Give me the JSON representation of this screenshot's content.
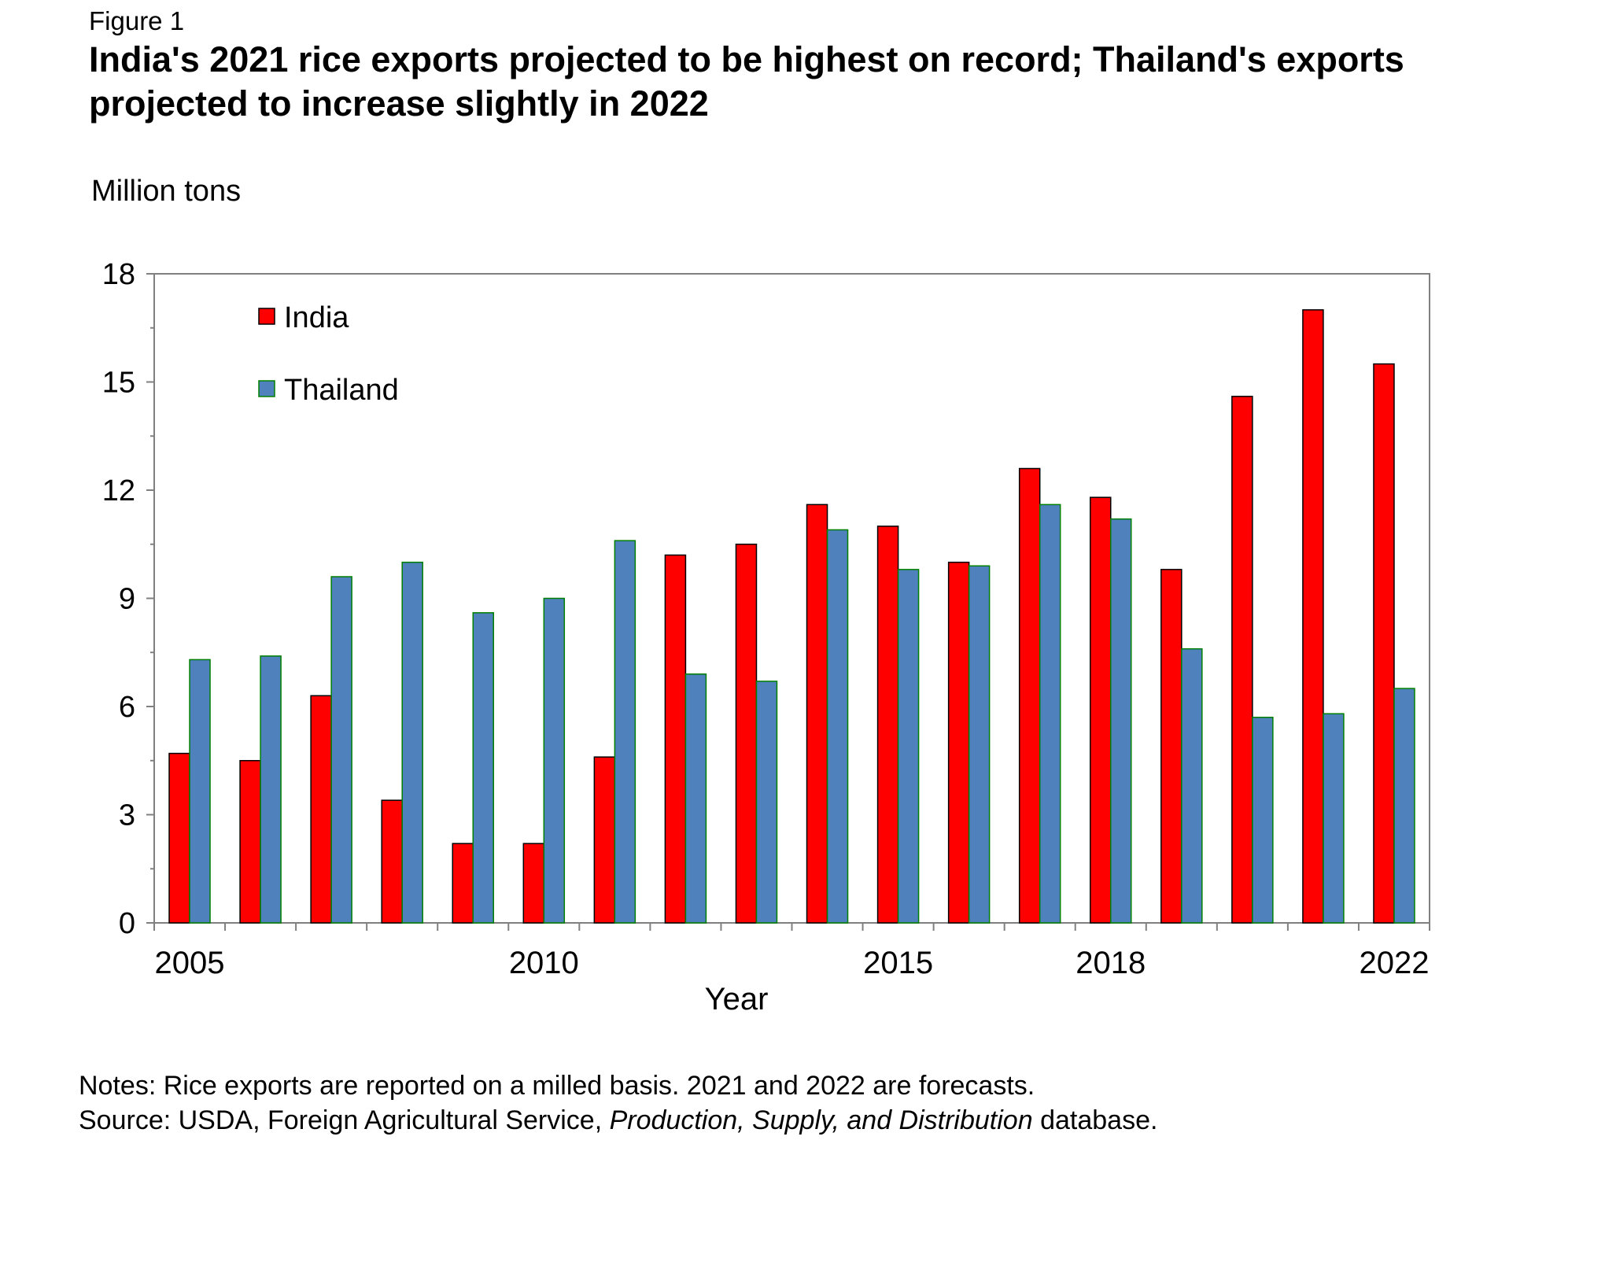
{
  "figure_label": "Figure 1",
  "title": "India's 2021 rice exports projected to be highest on record; Thailand's exports projected to increase slightly in 2022",
  "notes": {
    "line1": "Notes: Rice exports are reported on a milled basis. 2021 and 2022 are forecasts.",
    "source_prefix": "Source: USDA, Foreign Agricultural Service, ",
    "source_italic": "Production, Supply, and Distribution",
    "source_suffix": " database."
  },
  "colors": {
    "india": "#ff0000",
    "thailand": "#4f81bd",
    "thailand_border": "#008000",
    "india_border": "#000000"
  },
  "chart_data": {
    "type": "bar",
    "ylabel": "Million tons",
    "xlabel": "Year",
    "ylim": [
      0,
      18
    ],
    "yticks": [
      0,
      3,
      6,
      9,
      12,
      15,
      18
    ],
    "categories": [
      2005,
      2006,
      2007,
      2008,
      2009,
      2010,
      2011,
      2012,
      2013,
      2014,
      2015,
      2016,
      2017,
      2018,
      2019,
      2020,
      2021,
      2022
    ],
    "x_tick_labels": [
      "2005",
      "2010",
      "2015",
      "2018",
      "2022"
    ],
    "legend_position": "top-left",
    "grid": false,
    "series": [
      {
        "name": "India",
        "values": [
          4.7,
          4.5,
          6.3,
          3.4,
          2.2,
          2.2,
          4.6,
          10.2,
          10.5,
          11.6,
          11.0,
          10.0,
          12.6,
          11.8,
          9.8,
          14.6,
          17.0,
          15.5
        ]
      },
      {
        "name": "Thailand",
        "values": [
          7.3,
          7.4,
          9.6,
          10.0,
          8.6,
          9.0,
          10.6,
          6.9,
          6.7,
          10.9,
          9.8,
          9.9,
          11.6,
          11.2,
          7.6,
          5.7,
          5.8,
          6.5
        ]
      }
    ]
  }
}
